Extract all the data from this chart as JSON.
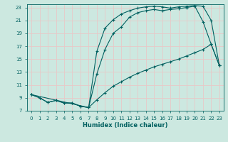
{
  "xlabel": "Humidex (Indice chaleur)",
  "background_color": "#cce8e0",
  "grid_color": "#e8c8c8",
  "line_color": "#006060",
  "xlim": [
    -0.5,
    23.5
  ],
  "ylim": [
    7,
    23.5
  ],
  "xticks": [
    0,
    1,
    2,
    3,
    4,
    5,
    6,
    7,
    8,
    9,
    10,
    11,
    12,
    13,
    14,
    15,
    16,
    17,
    18,
    19,
    20,
    21,
    22,
    23
  ],
  "yticks": [
    7,
    9,
    11,
    13,
    15,
    17,
    19,
    21,
    23
  ],
  "curve1_x": [
    0,
    1,
    2,
    3,
    4,
    5,
    6,
    7,
    8,
    9,
    10,
    11,
    12,
    13,
    14,
    15,
    16,
    17,
    18,
    19,
    20,
    21,
    22,
    23
  ],
  "curve1_y": [
    9.5,
    9.0,
    8.3,
    8.6,
    8.2,
    8.2,
    7.7,
    7.5,
    12.7,
    16.5,
    19.0,
    20.0,
    21.5,
    22.2,
    22.5,
    22.7,
    22.5,
    22.7,
    22.8,
    23.0,
    23.2,
    20.8,
    17.3,
    14.0
  ],
  "curve2_x": [
    0,
    1,
    2,
    3,
    4,
    5,
    6,
    7,
    8,
    9,
    10,
    11,
    12,
    13,
    14,
    15,
    16,
    17,
    18,
    19,
    20,
    21,
    22,
    23
  ],
  "curve2_y": [
    9.5,
    9.0,
    8.3,
    8.6,
    8.2,
    8.2,
    7.7,
    7.5,
    8.7,
    9.8,
    10.8,
    11.5,
    12.2,
    12.8,
    13.3,
    13.8,
    14.2,
    14.6,
    15.0,
    15.5,
    16.0,
    16.5,
    17.3,
    14.0
  ],
  "curve3_x": [
    0,
    7,
    8,
    9,
    10,
    11,
    12,
    13,
    14,
    15,
    16,
    17,
    18,
    19,
    20,
    21,
    22,
    23
  ],
  "curve3_y": [
    9.5,
    7.5,
    16.2,
    19.8,
    21.1,
    22.0,
    22.5,
    22.9,
    23.1,
    23.2,
    23.1,
    22.9,
    23.1,
    23.2,
    23.3,
    23.2,
    21.0,
    14.0
  ]
}
